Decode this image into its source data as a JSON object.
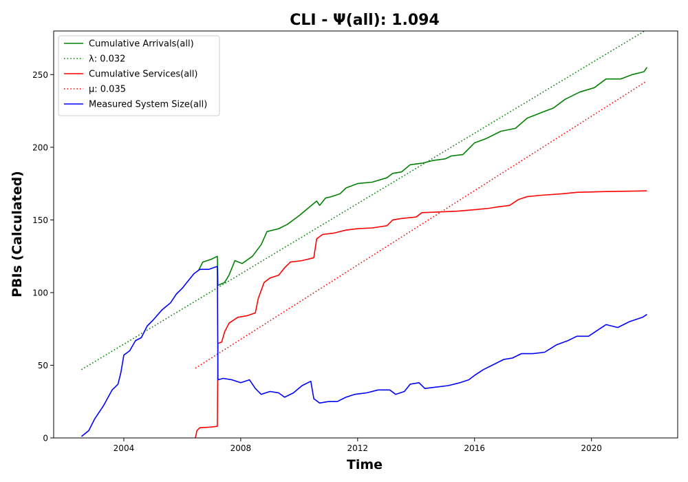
{
  "chart_data": {
    "type": "line",
    "title": "CLI -  Ψ(all): 1.094",
    "xlabel": "Time",
    "ylabel": "PBIs (Calculated)",
    "xlim": [
      2001.6,
      2022.95
    ],
    "ylim": [
      0,
      280
    ],
    "xticks": [
      2004,
      2008,
      2012,
      2016,
      2020
    ],
    "yticks": [
      0,
      50,
      100,
      150,
      200,
      250
    ],
    "grid": false,
    "legend_position": "top-left",
    "series": [
      {
        "name": "Cumulative Arrivals(all)",
        "color": "#008000",
        "style": "solid",
        "points": [
          [
            2006.55,
            115
          ],
          [
            2006.7,
            121
          ],
          [
            2007.0,
            123
          ],
          [
            2007.2,
            125
          ],
          [
            2007.22,
            105
          ],
          [
            2007.45,
            107
          ],
          [
            2007.6,
            112
          ],
          [
            2007.8,
            122
          ],
          [
            2008.05,
            120
          ],
          [
            2008.4,
            125
          ],
          [
            2008.7,
            133
          ],
          [
            2008.9,
            142
          ],
          [
            2009.3,
            144
          ],
          [
            2009.6,
            147
          ],
          [
            2010.0,
            153
          ],
          [
            2010.3,
            158
          ],
          [
            2010.6,
            163
          ],
          [
            2010.7,
            160
          ],
          [
            2010.9,
            165
          ],
          [
            2011.1,
            166
          ],
          [
            2011.4,
            168
          ],
          [
            2011.6,
            172
          ],
          [
            2012.0,
            175
          ],
          [
            2012.5,
            176
          ],
          [
            2013.0,
            179
          ],
          [
            2013.2,
            182
          ],
          [
            2013.5,
            183
          ],
          [
            2013.8,
            188
          ],
          [
            2014.2,
            189
          ],
          [
            2014.6,
            191
          ],
          [
            2015.0,
            192
          ],
          [
            2015.2,
            194
          ],
          [
            2015.6,
            195
          ],
          [
            2015.8,
            199
          ],
          [
            2016.0,
            203
          ],
          [
            2016.4,
            206
          ],
          [
            2016.9,
            211
          ],
          [
            2017.4,
            213
          ],
          [
            2017.8,
            220
          ],
          [
            2018.3,
            224
          ],
          [
            2018.7,
            227
          ],
          [
            2019.1,
            233
          ],
          [
            2019.6,
            238
          ],
          [
            2020.1,
            241
          ],
          [
            2020.5,
            247
          ],
          [
            2021.0,
            247
          ],
          [
            2021.4,
            250
          ],
          [
            2021.8,
            252
          ],
          [
            2021.9,
            255
          ]
        ]
      },
      {
        "name": "λ: 0.032",
        "color": "#008000",
        "style": "dotted",
        "points": [
          [
            2002.55,
            47
          ],
          [
            2021.9,
            281
          ]
        ]
      },
      {
        "name": "Cumulative Services(all)",
        "color": "#ff0000",
        "style": "solid",
        "points": [
          [
            2006.45,
            0
          ],
          [
            2006.5,
            5
          ],
          [
            2006.6,
            7
          ],
          [
            2007.0,
            7.5
          ],
          [
            2007.2,
            8
          ],
          [
            2007.22,
            65
          ],
          [
            2007.35,
            66
          ],
          [
            2007.45,
            73
          ],
          [
            2007.6,
            79
          ],
          [
            2007.9,
            83
          ],
          [
            2008.2,
            84
          ],
          [
            2008.5,
            86
          ],
          [
            2008.6,
            96
          ],
          [
            2008.8,
            107
          ],
          [
            2009.0,
            110
          ],
          [
            2009.3,
            112
          ],
          [
            2009.5,
            117
          ],
          [
            2009.7,
            121
          ],
          [
            2010.1,
            122
          ],
          [
            2010.5,
            124
          ],
          [
            2010.6,
            137
          ],
          [
            2010.8,
            140
          ],
          [
            2011.2,
            141
          ],
          [
            2011.6,
            143
          ],
          [
            2012.0,
            144
          ],
          [
            2012.5,
            144.5
          ],
          [
            2013.0,
            146
          ],
          [
            2013.2,
            150
          ],
          [
            2013.5,
            151
          ],
          [
            2014.0,
            152
          ],
          [
            2014.2,
            155
          ],
          [
            2014.8,
            155.5
          ],
          [
            2015.4,
            156
          ],
          [
            2016.0,
            157
          ],
          [
            2016.5,
            158
          ],
          [
            2016.8,
            159
          ],
          [
            2017.2,
            160
          ],
          [
            2017.5,
            164
          ],
          [
            2017.8,
            166
          ],
          [
            2018.3,
            167
          ],
          [
            2019.0,
            168
          ],
          [
            2019.5,
            169
          ],
          [
            2020.5,
            169.5
          ],
          [
            2021.9,
            170
          ]
        ]
      },
      {
        "name": "μ: 0.035",
        "color": "#ff0000",
        "style": "dotted",
        "points": [
          [
            2006.45,
            48
          ],
          [
            2021.85,
            245
          ]
        ]
      },
      {
        "name": "Measured System Size(all)",
        "color": "#0000ff",
        "style": "solid",
        "points": [
          [
            2002.55,
            1
          ],
          [
            2002.8,
            5
          ],
          [
            2003.0,
            13
          ],
          [
            2003.3,
            22
          ],
          [
            2003.6,
            33
          ],
          [
            2003.8,
            37
          ],
          [
            2003.9,
            45
          ],
          [
            2004.0,
            57
          ],
          [
            2004.2,
            60
          ],
          [
            2004.4,
            67
          ],
          [
            2004.6,
            69
          ],
          [
            2004.8,
            77
          ],
          [
            2005.0,
            81
          ],
          [
            2005.3,
            88
          ],
          [
            2005.6,
            93
          ],
          [
            2005.8,
            99
          ],
          [
            2006.0,
            103
          ],
          [
            2006.2,
            108
          ],
          [
            2006.4,
            113
          ],
          [
            2006.6,
            116
          ],
          [
            2006.9,
            116
          ],
          [
            2007.2,
            118
          ],
          [
            2007.22,
            40
          ],
          [
            2007.4,
            41
          ],
          [
            2007.7,
            40
          ],
          [
            2008.0,
            38
          ],
          [
            2008.3,
            40
          ],
          [
            2008.5,
            34
          ],
          [
            2008.7,
            30
          ],
          [
            2009.0,
            32
          ],
          [
            2009.3,
            31
          ],
          [
            2009.5,
            28
          ],
          [
            2009.8,
            31
          ],
          [
            2010.1,
            36
          ],
          [
            2010.4,
            39
          ],
          [
            2010.5,
            27
          ],
          [
            2010.7,
            24
          ],
          [
            2011.0,
            25
          ],
          [
            2011.3,
            25
          ],
          [
            2011.6,
            28
          ],
          [
            2011.9,
            30
          ],
          [
            2012.3,
            31
          ],
          [
            2012.7,
            33
          ],
          [
            2013.1,
            33
          ],
          [
            2013.3,
            30
          ],
          [
            2013.6,
            32
          ],
          [
            2013.8,
            37
          ],
          [
            2014.1,
            38
          ],
          [
            2014.3,
            34
          ],
          [
            2014.7,
            35
          ],
          [
            2015.1,
            36
          ],
          [
            2015.5,
            38
          ],
          [
            2015.8,
            40
          ],
          [
            2016.0,
            43
          ],
          [
            2016.3,
            47
          ],
          [
            2016.7,
            51
          ],
          [
            2017.0,
            54
          ],
          [
            2017.3,
            55
          ],
          [
            2017.6,
            58
          ],
          [
            2018.0,
            58
          ],
          [
            2018.4,
            59
          ],
          [
            2018.8,
            64
          ],
          [
            2019.2,
            67
          ],
          [
            2019.5,
            70
          ],
          [
            2019.9,
            70
          ],
          [
            2020.2,
            74
          ],
          [
            2020.5,
            78
          ],
          [
            2020.9,
            76
          ],
          [
            2021.3,
            80
          ],
          [
            2021.6,
            82
          ],
          [
            2021.75,
            83
          ],
          [
            2021.9,
            85
          ]
        ]
      }
    ]
  }
}
